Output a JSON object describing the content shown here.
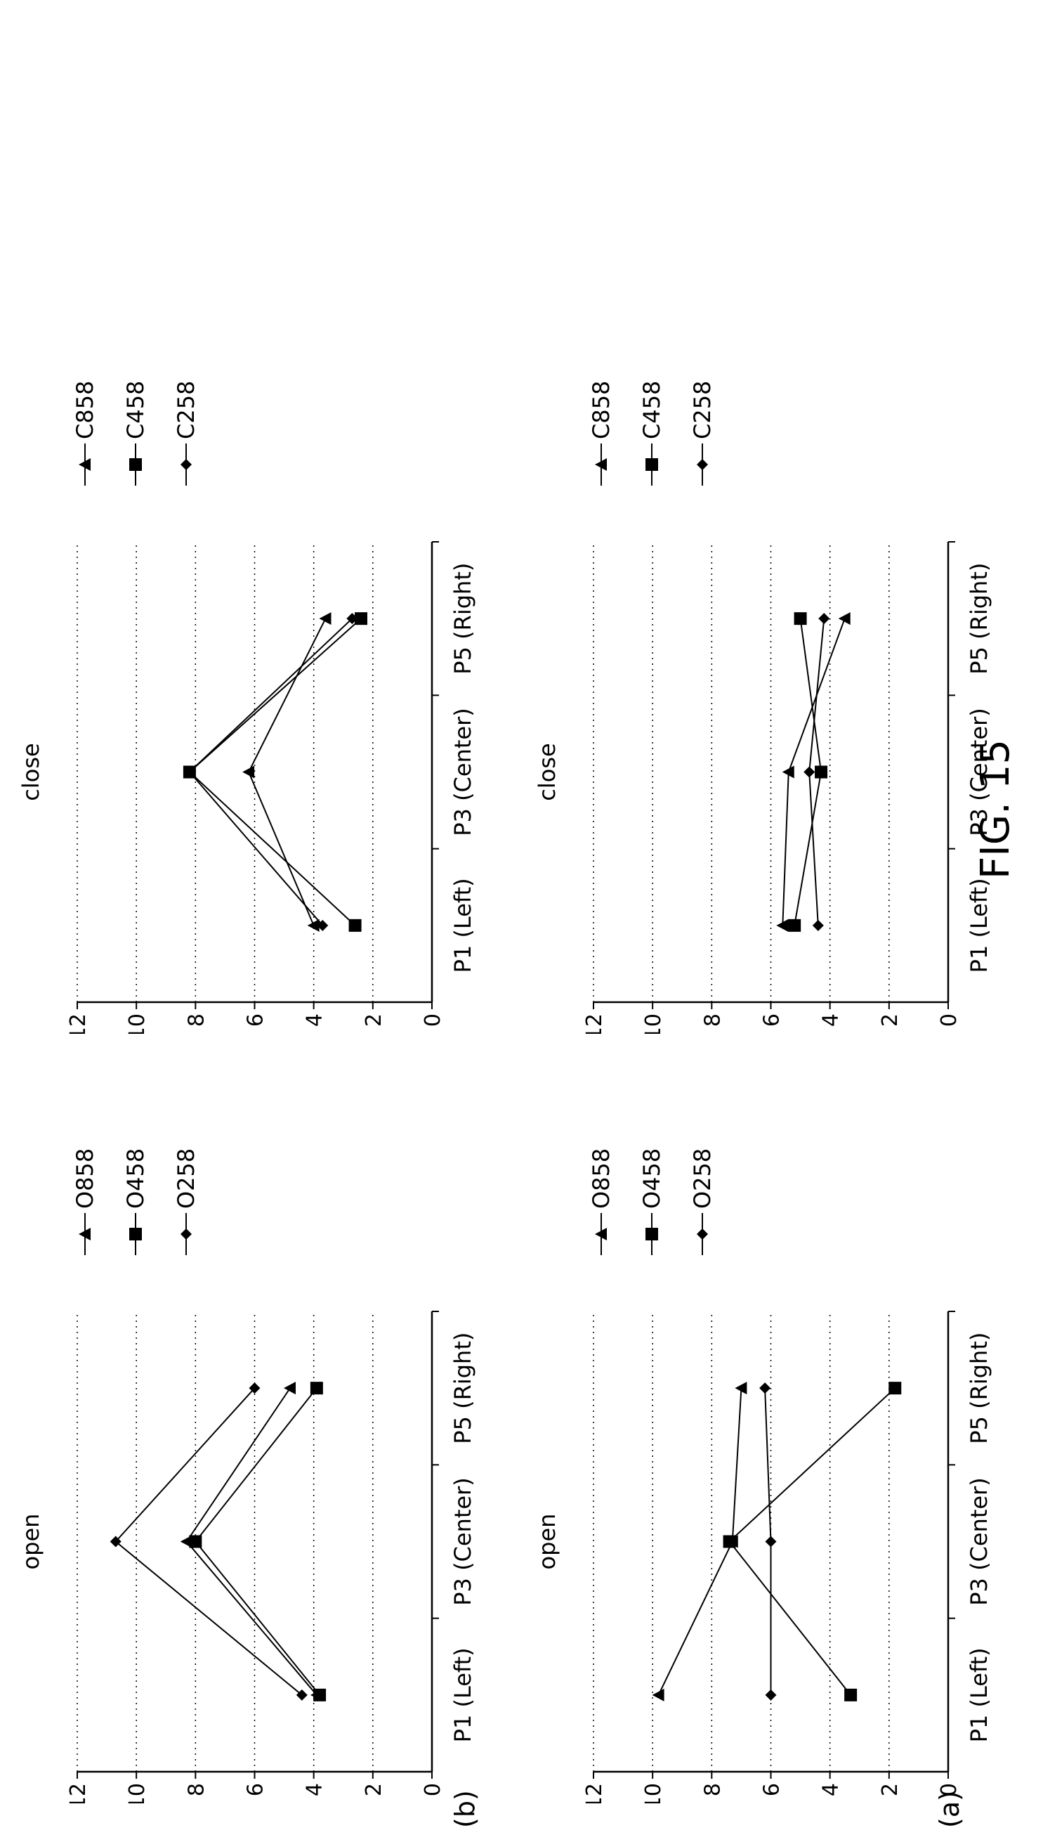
{
  "figure": {
    "label": "FIG. 15"
  },
  "rows": [
    {
      "label": "(a)"
    },
    {
      "label": "(b)"
    }
  ],
  "chart_data": [
    {
      "type": "line",
      "title": "open",
      "row": "(a)",
      "categories": [
        "P1 (Left)",
        "P3 (Center)",
        "P5 (Right)"
      ],
      "ylim": [
        0,
        12
      ],
      "yticks": [
        "0",
        "2",
        "4",
        "6",
        "8",
        "10",
        "12"
      ],
      "grid": true,
      "legend": "right",
      "series": [
        {
          "name": "O258",
          "marker": "diamond",
          "values": [
            6.0,
            6.0,
            6.2
          ]
        },
        {
          "name": "O458",
          "marker": "square",
          "values": [
            3.3,
            7.4,
            1.8
          ]
        },
        {
          "name": "O858",
          "marker": "triangle",
          "values": [
            9.8,
            7.3,
            7.0
          ]
        }
      ]
    },
    {
      "type": "line",
      "title": "close",
      "row": "(a)",
      "categories": [
        "P1 (Left)",
        "P3 (Center)",
        "P5 (Right)"
      ],
      "ylim": [
        0,
        12
      ],
      "yticks": [
        "0",
        "2",
        "4",
        "6",
        "8",
        "10",
        "12"
      ],
      "grid": true,
      "legend": "right",
      "series": [
        {
          "name": "C258",
          "marker": "diamond",
          "values": [
            4.4,
            4.7,
            4.2
          ]
        },
        {
          "name": "C458",
          "marker": "square",
          "values": [
            5.2,
            4.3,
            5.0
          ]
        },
        {
          "name": "C858",
          "marker": "triangle",
          "values": [
            5.6,
            5.4,
            3.5
          ]
        }
      ]
    },
    {
      "type": "line",
      "title": "open",
      "row": "(b)",
      "categories": [
        "P1 (Left)",
        "P3 (Center)",
        "P5 (Right)"
      ],
      "ylim": [
        0,
        12
      ],
      "yticks": [
        "0",
        "2",
        "4",
        "6",
        "8",
        "10",
        "12"
      ],
      "grid": true,
      "legend": "right",
      "series": [
        {
          "name": "O258",
          "marker": "diamond",
          "values": [
            4.4,
            10.7,
            6.0
          ]
        },
        {
          "name": "O458",
          "marker": "square",
          "values": [
            3.8,
            8.0,
            3.9
          ]
        },
        {
          "name": "O858",
          "marker": "triangle",
          "values": [
            3.9,
            8.3,
            4.8
          ]
        }
      ]
    },
    {
      "type": "line",
      "title": "close",
      "row": "(b)",
      "categories": [
        "P1 (Left)",
        "P3 (Center)",
        "P5 (Right)"
      ],
      "ylim": [
        0,
        12
      ],
      "yticks": [
        "0",
        "2",
        "4",
        "6",
        "8",
        "10",
        "12"
      ],
      "grid": true,
      "legend": "right",
      "series": [
        {
          "name": "C258",
          "marker": "diamond",
          "values": [
            3.7,
            8.2,
            2.7
          ]
        },
        {
          "name": "C458",
          "marker": "square",
          "values": [
            2.6,
            8.2,
            2.4
          ]
        },
        {
          "name": "C858",
          "marker": "triangle",
          "values": [
            4.0,
            6.2,
            3.6
          ]
        }
      ]
    }
  ]
}
